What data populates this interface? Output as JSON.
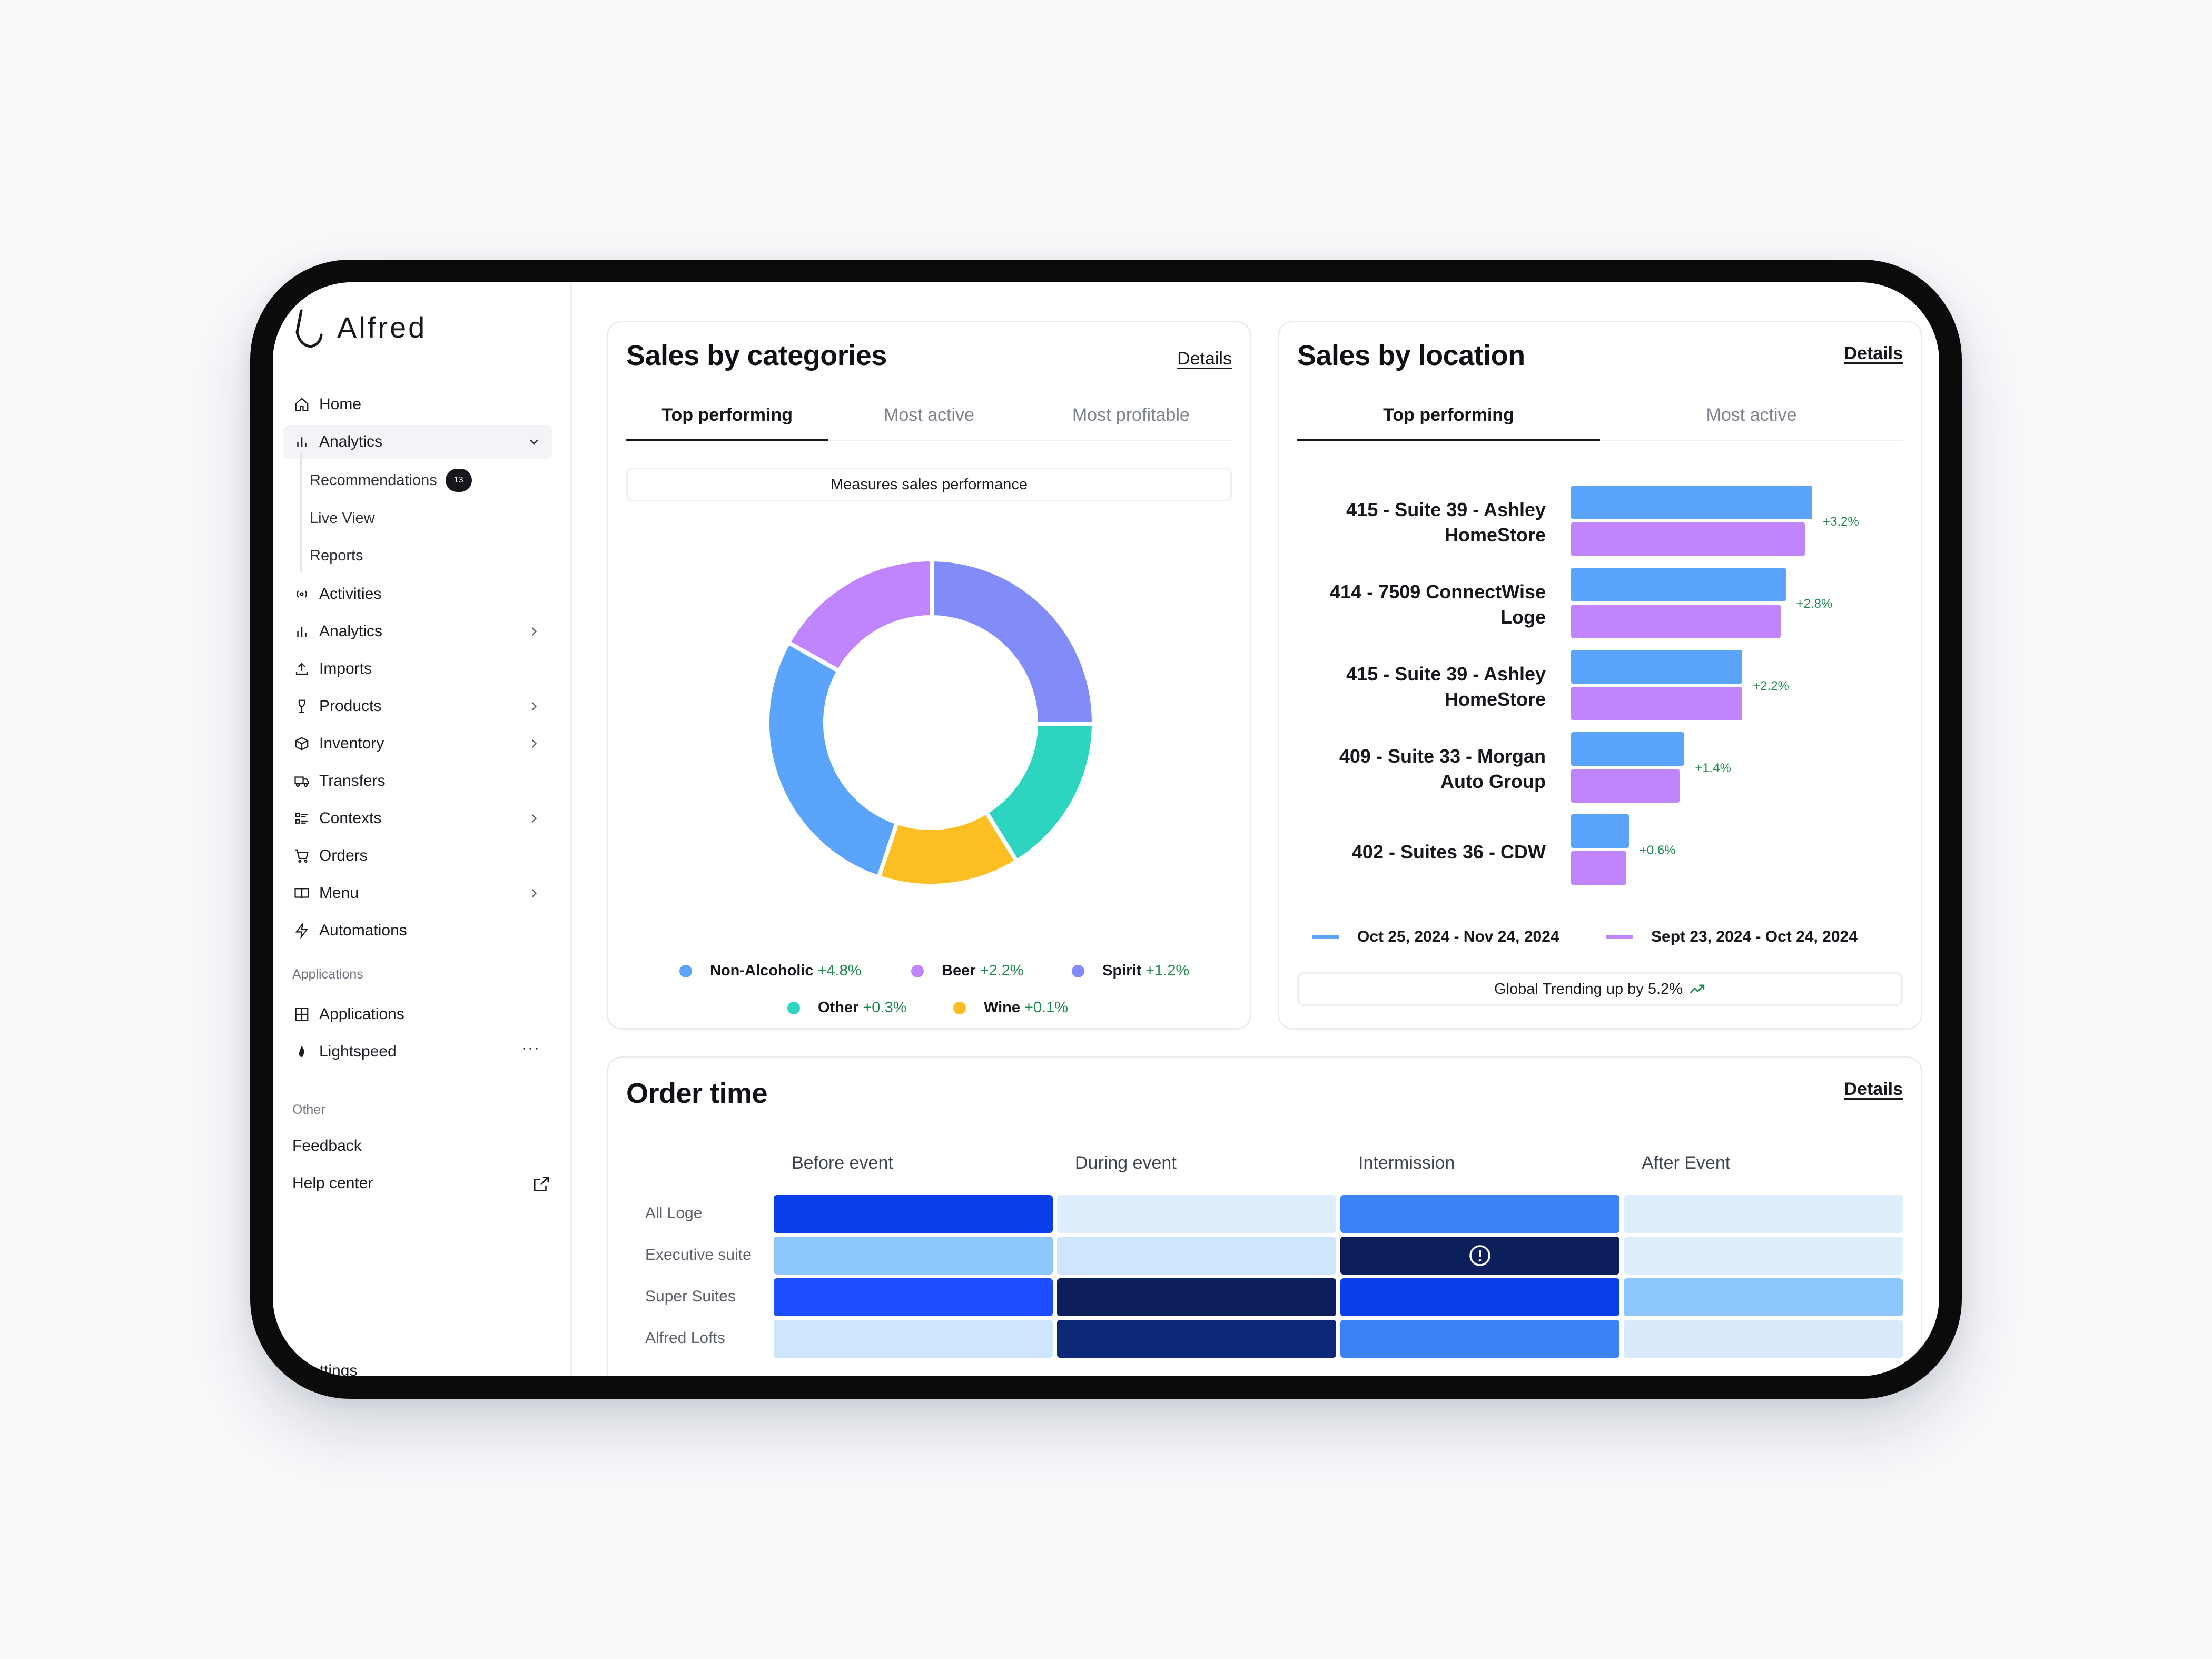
{
  "brand": {
    "name": "Alfred"
  },
  "sidebar": {
    "items": [
      {
        "label": "Home",
        "icon": "home-icon"
      },
      {
        "label": "Analytics",
        "icon": "bar-chart-icon",
        "expanded": true
      },
      {
        "label": "Activities",
        "icon": "broadcast-icon"
      },
      {
        "label": "Analytics",
        "icon": "bar-chart-icon"
      },
      {
        "label": "Imports",
        "icon": "upload-icon"
      },
      {
        "label": "Products",
        "icon": "wine-glass-icon"
      },
      {
        "label": "Inventory",
        "icon": "box-icon"
      },
      {
        "label": "Transfers",
        "icon": "truck-icon"
      },
      {
        "label": "Contexts",
        "icon": "list-icon"
      },
      {
        "label": "Orders",
        "icon": "cart-icon"
      },
      {
        "label": "Menu",
        "icon": "book-icon"
      },
      {
        "label": "Automations",
        "icon": "bolt-icon"
      }
    ],
    "analytics_sub": [
      {
        "label": "Recommendations",
        "badge": "13"
      },
      {
        "label": "Live View"
      },
      {
        "label": "Reports"
      }
    ],
    "applications_label": "Applications",
    "applications": [
      {
        "label": "Applications",
        "icon": "grid-icon"
      },
      {
        "label": "Lightspeed",
        "icon": "flame-icon",
        "more": "···"
      }
    ],
    "other_label": "Other",
    "other": [
      {
        "label": "Feedback"
      },
      {
        "label": "Help center"
      }
    ],
    "settings_label": "Settings"
  },
  "categories_card": {
    "title": "Sales by categories",
    "details": "Details",
    "tabs": [
      "Top performing",
      "Most active",
      "Most profitable"
    ],
    "active_tab": 0,
    "pill": "Measures sales performance"
  },
  "location_card": {
    "title": "Sales by location",
    "details": "Details",
    "tabs": [
      "Top performing",
      "Most active"
    ],
    "active_tab": 0,
    "trend_text": "Global Trending up by 5.2%"
  },
  "order_card": {
    "title": "Order time",
    "details": "Details"
  },
  "colors": {
    "blue": "#5ba4fb",
    "purple": "#c084fc",
    "indigo": "#818cf8",
    "teal": "#2dd4bf",
    "yellow": "#fbbf24",
    "green": "#1f8a4f"
  },
  "chart_data": [
    {
      "type": "pie",
      "title": "Sales by categories",
      "categories": [
        "Non-Alcoholic",
        "Beer",
        "Spirit",
        "Other",
        "Wine"
      ],
      "values": [
        28,
        17,
        25,
        16,
        14
      ],
      "deltas": [
        "+4.8%",
        "+2.2%",
        "+1.2%",
        "+0.3%",
        "+0.1%"
      ],
      "colors": [
        "#5ba4fb",
        "#c084fc",
        "#818cf8",
        "#2dd4bf",
        "#fbbf24"
      ]
    },
    {
      "type": "bar",
      "title": "Sales by location",
      "categories": [
        "415 - Suite 39 - Ashley HomeStore",
        "414 - 7509 ConnectWise Loge",
        "415 - Suite 39 - Ashley HomeStore",
        "409 - Suite 33 - Morgan Auto Group",
        "402 - Suites 36 - CDW"
      ],
      "series": [
        {
          "name": "Oct 25, 2024 - Nov 24, 2024",
          "values": [
            100,
            89,
            71,
            47,
            24
          ],
          "color": "#5ba4fb"
        },
        {
          "name": "Sept 23, 2024 - Oct 24, 2024",
          "values": [
            97,
            87,
            71,
            45,
            23
          ],
          "color": "#c084fc"
        }
      ],
      "deltas": [
        "+3.2%",
        "+2.8%",
        "+2.2%",
        "+1.4%",
        "+0.6%"
      ]
    },
    {
      "type": "heatmap",
      "title": "Order time",
      "columns": [
        "Before event",
        "During event",
        "Intermission",
        "After Event"
      ],
      "rows": [
        "All Loge",
        "Executive suite",
        "Super Suites",
        "Alfred Lofts"
      ],
      "values": [
        [
          0.8,
          0.05,
          0.6,
          0.05
        ],
        [
          0.35,
          0.12,
          1.0,
          0.05
        ],
        [
          0.75,
          1.0,
          0.8,
          0.35
        ],
        [
          0.12,
          0.9,
          0.6,
          0.08
        ]
      ],
      "alert_cell": [
        1,
        2
      ]
    }
  ]
}
